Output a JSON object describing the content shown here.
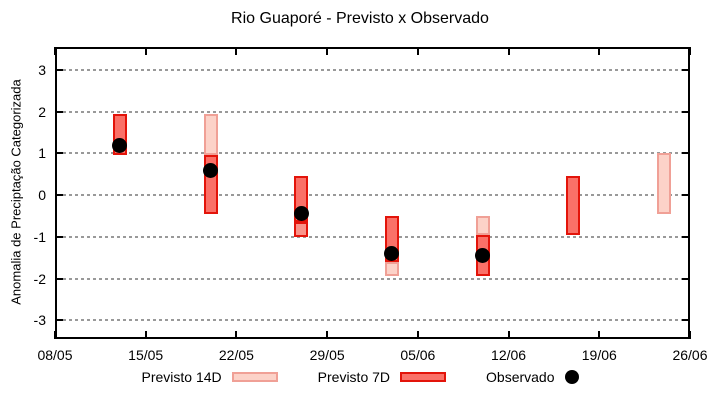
{
  "chart_data": {
    "type": "bar",
    "title": "Rio Guaporé - Previsto x Observado",
    "ylabel": "Anomalia de Preciptação Categorizada",
    "xlabel": "",
    "grid": "horizontal-dashed",
    "legend_position": "bottom",
    "ylim": [
      -3.45,
      3.55
    ],
    "yticks": [
      3,
      2,
      1,
      0,
      -1,
      -2,
      -3
    ],
    "xlim_days": [
      0,
      49
    ],
    "xticks": [
      {
        "day": 0,
        "label": "08/05"
      },
      {
        "day": 7,
        "label": "15/05"
      },
      {
        "day": 14,
        "label": "22/05"
      },
      {
        "day": 21,
        "label": "29/05"
      },
      {
        "day": 28,
        "label": "05/06"
      },
      {
        "day": 35,
        "label": "12/06"
      },
      {
        "day": 42,
        "label": "19/06"
      },
      {
        "day": 49,
        "label": "26/06"
      }
    ],
    "series_styles": {
      "14d": {
        "fill": "#fcd2c8",
        "border": "#f0a096"
      },
      "7d": {
        "fill": "#fa7168",
        "border": "#e3140a"
      },
      "overlap": {
        "fill": "#f9948a",
        "border": "#e3140a"
      }
    },
    "observed_style": {
      "color": "#000000"
    },
    "bars": [
      {
        "day": 5,
        "segments": [
          {
            "style": "7d",
            "from": 0.95,
            "to": 1.95
          }
        ]
      },
      {
        "day": 12,
        "segments": [
          {
            "style": "14d",
            "from": 0.95,
            "to": 1.95
          },
          {
            "style": "7d",
            "from": -0.45,
            "to": 0.95
          }
        ]
      },
      {
        "day": 19,
        "segments": [
          {
            "style": "7d",
            "from": -0.65,
            "to": 0.45
          },
          {
            "style": "overlap",
            "from": -1.0,
            "to": -0.65
          }
        ]
      },
      {
        "day": 26,
        "segments": [
          {
            "style": "7d",
            "from": -1.6,
            "to": -0.5
          },
          {
            "style": "14d",
            "from": -1.95,
            "to": -1.6
          }
        ]
      },
      {
        "day": 33,
        "segments": [
          {
            "style": "14d",
            "from": -0.95,
            "to": -0.5
          },
          {
            "style": "7d",
            "from": -1.95,
            "to": -0.95
          }
        ]
      },
      {
        "day": 40,
        "segments": [
          {
            "style": "7d",
            "from": -0.95,
            "to": 0.45
          }
        ]
      },
      {
        "day": 47,
        "segments": [
          {
            "style": "14d",
            "from": -0.45,
            "to": 1.0
          }
        ]
      }
    ],
    "observed": [
      {
        "day": 5,
        "value": 1.2
      },
      {
        "day": 12,
        "value": 0.6
      },
      {
        "day": 19,
        "value": -0.45
      },
      {
        "day": 26,
        "value": -1.4
      },
      {
        "day": 33,
        "value": -1.45
      }
    ],
    "legend": [
      {
        "label": "Previsto 14D",
        "swatch": "14d"
      },
      {
        "label": "Previsto 7D",
        "swatch": "7d"
      },
      {
        "label": "Observado",
        "swatch": "dot"
      }
    ]
  }
}
